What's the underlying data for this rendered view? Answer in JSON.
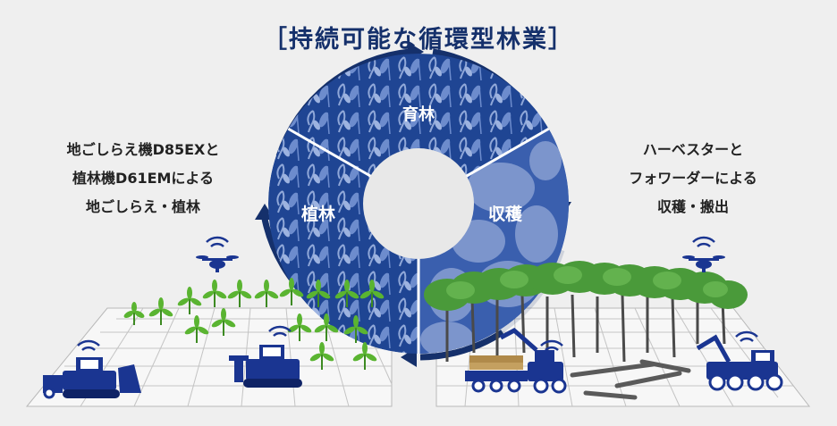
{
  "title": "［持続可能な循環型林業］",
  "cycle": {
    "segments": [
      {
        "label": "育林"
      },
      {
        "label": "植林"
      },
      {
        "label": "収穫"
      }
    ]
  },
  "captions": {
    "left": [
      "地ごしらえ機D85EXと",
      "植林機D61EMによる",
      "地ごしらえ・植林"
    ],
    "right": [
      "ハーベスターと",
      "フォワーダーによる",
      "収穫・搬出"
    ]
  },
  "colors": {
    "navy": "#15306b",
    "cycle_dark": "#1c3f8c",
    "cycle_light": "#7c95cc",
    "leaf_green": "#5ab431",
    "tree_green": "#4a9a3a",
    "machine_blue": "#1a3591",
    "grid_line": "#b8b8b8"
  }
}
